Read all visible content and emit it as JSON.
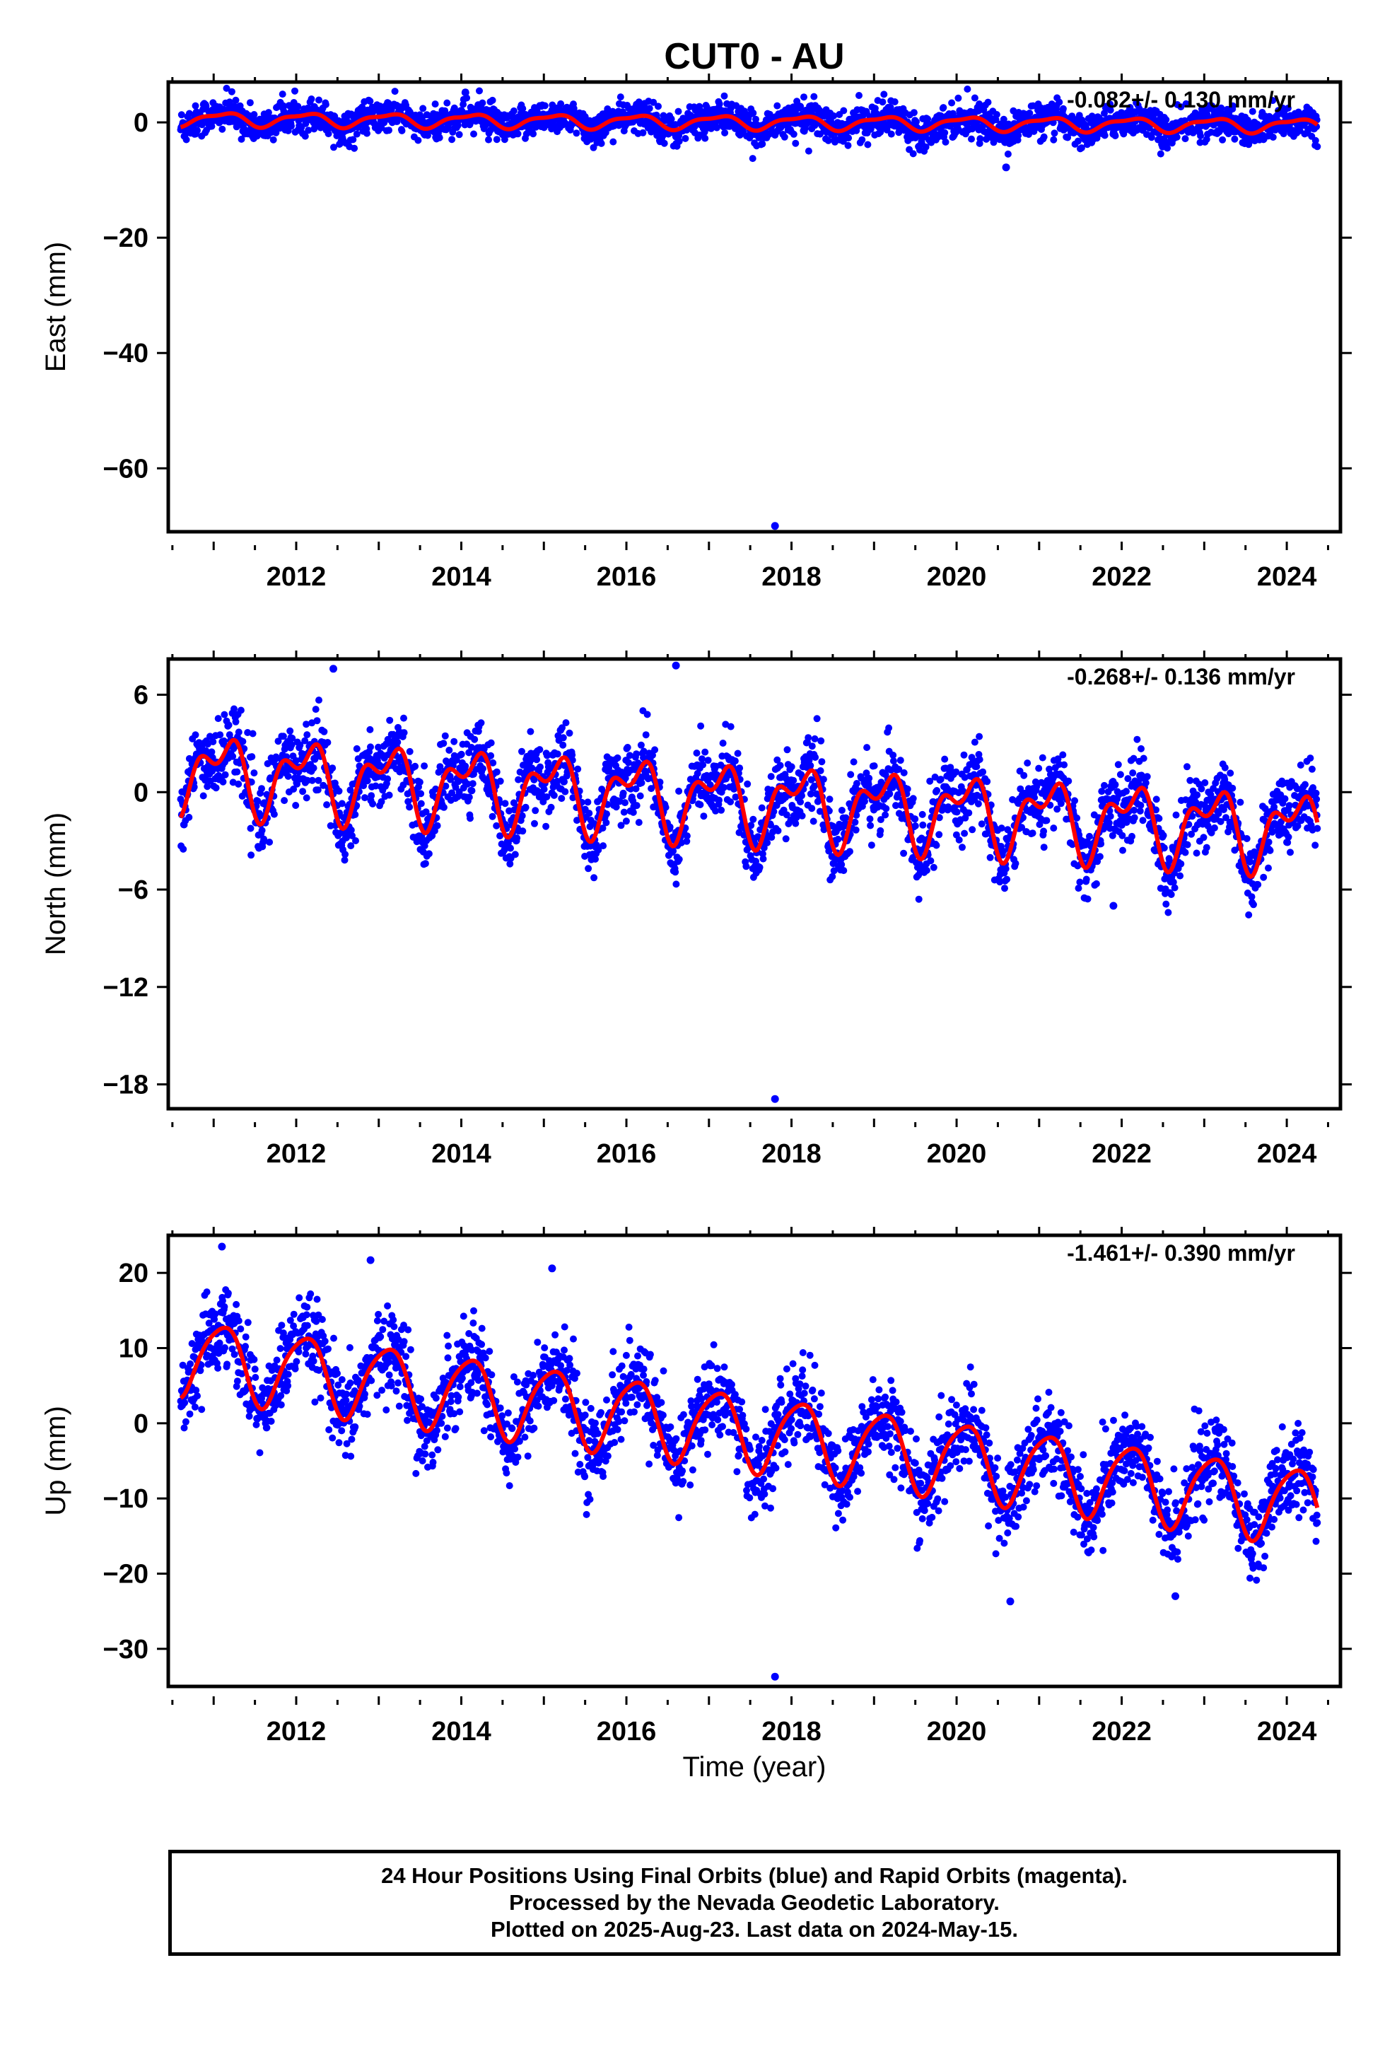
{
  "title": "CUT0 - AU",
  "xlabel": "Time (year)",
  "colors": {
    "points": "#0000ff",
    "model": "#ff0000",
    "axes": "#000000"
  },
  "footer": {
    "line1": "24 Hour Positions Using Final Orbits (blue) and Rapid Orbits (magenta).",
    "line2": "Processed by the Nevada Geodetic Laboratory.",
    "line3": "Plotted on 2025-Aug-23. Last data on 2024-May-15."
  },
  "chart_data": [
    {
      "type": "scatter",
      "component": "east",
      "ylabel": "East (mm)",
      "rate_label": "-0.082+/- 0.130 mm/yr",
      "xlim": [
        2010.45,
        2024.65
      ],
      "ylim": [
        -71,
        7
      ],
      "x_ticks": [
        2012,
        2014,
        2016,
        2018,
        2020,
        2022,
        2024
      ],
      "y_ticks": [
        0,
        -20,
        -40,
        -60
      ],
      "y_tick_labels": [
        "0",
        "−20",
        "−40",
        "−60"
      ],
      "data_start": 2010.6,
      "data_end": 2024.37,
      "trend": {
        "intercept_2010_6": 0.6,
        "rate_mm_per_yr": -0.082
      },
      "annual_amplitude": 1.1,
      "semiannual_amplitude": 0.4,
      "scatter_sd": 1.4,
      "outliers": [
        {
          "x": 2017.8,
          "y": -70.0
        },
        {
          "x": 2014.05,
          "y": 5.2
        },
        {
          "x": 2020.6,
          "y": -7.8
        }
      ],
      "series": [
        {
          "name": "Final Orbits (blue)",
          "color": "#0000ff",
          "kind": "points"
        },
        {
          "name": "model",
          "color": "#ff0000",
          "kind": "line"
        }
      ]
    },
    {
      "type": "scatter",
      "component": "north",
      "ylabel": "North (mm)",
      "rate_label": "-0.268+/- 0.136 mm/yr",
      "xlim": [
        2010.45,
        2024.65
      ],
      "ylim": [
        -19.5,
        8.2
      ],
      "x_ticks": [
        2012,
        2014,
        2016,
        2018,
        2020,
        2022,
        2024
      ],
      "y_ticks": [
        6,
        0,
        -6,
        -12,
        -18
      ],
      "y_tick_labels": [
        "6",
        "0",
        "−6",
        "−12",
        "−18"
      ],
      "data_start": 2010.6,
      "data_end": 2024.37,
      "trend": {
        "intercept_2010_6": 1.3,
        "rate_mm_per_yr": -0.268
      },
      "annual_amplitude": 1.9,
      "semiannual_amplitude": 1.2,
      "scatter_sd": 1.1,
      "outliers": [
        {
          "x": 2017.8,
          "y": -18.9
        },
        {
          "x": 2016.6,
          "y": 7.8
        },
        {
          "x": 2012.45,
          "y": 7.6
        },
        {
          "x": 2021.9,
          "y": -7.0
        }
      ],
      "series": [
        {
          "name": "Final Orbits (blue)",
          "color": "#0000ff",
          "kind": "points"
        },
        {
          "name": "model",
          "color": "#ff0000",
          "kind": "line"
        }
      ]
    },
    {
      "type": "scatter",
      "component": "up",
      "ylabel": "Up (mm)",
      "rate_label": "-1.461+/- 0.390 mm/yr",
      "xlim": [
        2010.45,
        2024.65
      ],
      "ylim": [
        -35,
        25
      ],
      "x_ticks": [
        2012,
        2014,
        2016,
        2018,
        2020,
        2022,
        2024
      ],
      "y_ticks": [
        20,
        10,
        0,
        -10,
        -20,
        -30
      ],
      "y_tick_labels": [
        "20",
        "10",
        "0",
        "−10",
        "−20",
        "−30"
      ],
      "data_start": 2010.6,
      "data_end": 2024.37,
      "trend": {
        "intercept_2010_6": 9.0,
        "rate_mm_per_yr": -1.461
      },
      "annual_amplitude": 5.0,
      "semiannual_amplitude": 0.8,
      "scatter_sd": 2.8,
      "outliers": [
        {
          "x": 2017.8,
          "y": -33.7
        },
        {
          "x": 2020.65,
          "y": -23.7
        },
        {
          "x": 2022.65,
          "y": -23.0
        },
        {
          "x": 2011.1,
          "y": 23.5
        },
        {
          "x": 2012.9,
          "y": 21.7
        },
        {
          "x": 2015.1,
          "y": 20.6
        }
      ],
      "series": [
        {
          "name": "Final Orbits (blue)",
          "color": "#0000ff",
          "kind": "points"
        },
        {
          "name": "model",
          "color": "#ff0000",
          "kind": "line"
        }
      ]
    }
  ]
}
